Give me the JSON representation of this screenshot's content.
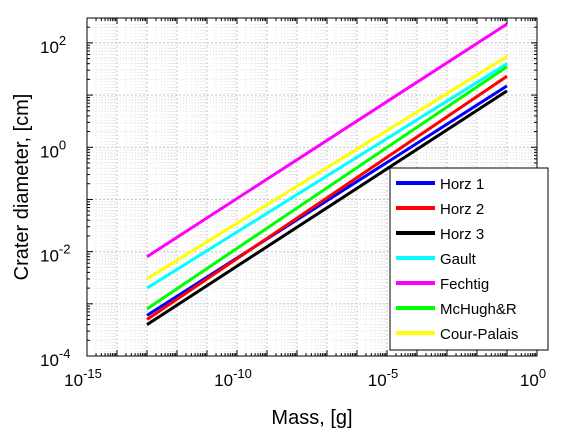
{
  "chart_data": {
    "type": "line",
    "xlabel": "Mass, [g]",
    "ylabel": "Crater diameter, [cm]",
    "x_scale": "log",
    "y_scale": "log",
    "xlim": [
      1e-15,
      1
    ],
    "ylim": [
      0.0001,
      300
    ],
    "x_ticks": [
      {
        "value": 1e-15,
        "base": "10",
        "exp": "-15"
      },
      {
        "value": 1e-10,
        "base": "10",
        "exp": "-10"
      },
      {
        "value": 1e-05,
        "base": "10",
        "exp": "-5"
      },
      {
        "value": 1,
        "base": "10",
        "exp": "0"
      }
    ],
    "y_ticks": [
      {
        "value": 0.0001,
        "base": "10",
        "exp": "-4"
      },
      {
        "value": 0.01,
        "base": "10",
        "exp": "-2"
      },
      {
        "value": 1,
        "base": "10",
        "exp": "0"
      },
      {
        "value": 100,
        "base": "10",
        "exp": "2"
      }
    ],
    "grid": true,
    "legend_position": "bottom-right",
    "series": [
      {
        "name": "Horz 1",
        "color": "#0000ff",
        "x": [
          1e-13,
          0.1
        ],
        "y": [
          0.0006,
          15
        ]
      },
      {
        "name": "Horz 2",
        "color": "#ff0000",
        "x": [
          1e-13,
          0.1
        ],
        "y": [
          0.0005,
          23
        ]
      },
      {
        "name": "Horz 3",
        "color": "#000000",
        "x": [
          1e-13,
          0.1
        ],
        "y": [
          0.0004,
          12
        ]
      },
      {
        "name": "Gault",
        "color": "#00ffff",
        "x": [
          1e-13,
          0.1
        ],
        "y": [
          0.002,
          40
        ]
      },
      {
        "name": "Fechtig",
        "color": "#ff00ff",
        "x": [
          1e-13,
          0.1
        ],
        "y": [
          0.008,
          230
        ]
      },
      {
        "name": "McHugh&R",
        "color": "#00ff00",
        "x": [
          1e-13,
          0.1
        ],
        "y": [
          0.0008,
          35
        ]
      },
      {
        "name": "Cour-Palais",
        "color": "#ffff00",
        "x": [
          1e-13,
          0.1
        ],
        "y": [
          0.003,
          55
        ]
      }
    ]
  }
}
